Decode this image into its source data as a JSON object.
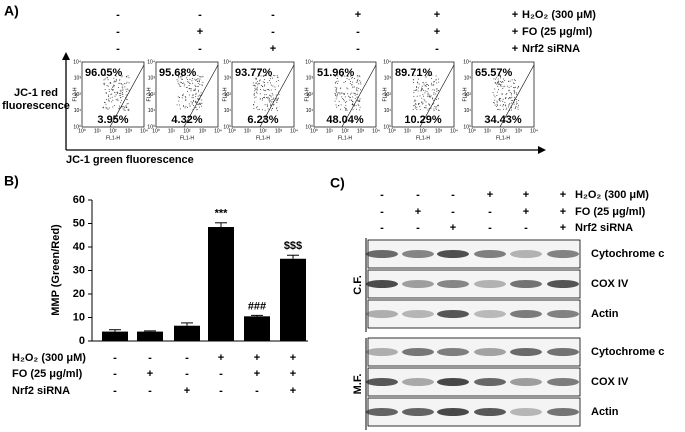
{
  "panel_a": {
    "label": "A)",
    "treatments": [
      {
        "name": "H₂O₂ (300 μM)",
        "signs": [
          "-",
          "-",
          "-",
          "+",
          "+",
          "+"
        ]
      },
      {
        "name": "FO (25 μg/ml)",
        "signs": [
          "-",
          "+",
          "-",
          "-",
          "+",
          "+"
        ]
      },
      {
        "name": "Nrf2 siRNA",
        "signs": [
          "-",
          "-",
          "+",
          "-",
          "-",
          "+"
        ]
      }
    ],
    "y_axis_label": [
      "JC-1 red",
      "fluorescence"
    ],
    "x_axis_label": "JC-1 green fluorescence",
    "plot_x_title": "FL1-H",
    "plot_y_title": "FL2-H",
    "plot_ticks": [
      "10⁰",
      "10¹",
      "10²",
      "10³",
      "10⁴"
    ],
    "plots": [
      {
        "upper": "96.05%",
        "lower": "3.95%"
      },
      {
        "upper": "95.68%",
        "lower": "4.32%"
      },
      {
        "upper": "93.77%",
        "lower": "6.23%"
      },
      {
        "upper": "51.96%",
        "lower": "48.04%"
      },
      {
        "upper": "89.71%",
        "lower": "10.29%"
      },
      {
        "upper": "65.57%",
        "lower": "34.43%"
      }
    ]
  },
  "chart_data": {
    "type": "bar",
    "panel_label": "B)",
    "ylabel": "MMP (Green/Red)",
    "treatments": [
      {
        "name": "H₂O₂ (300 μM)",
        "signs": [
          "-",
          "-",
          "-",
          "+",
          "+",
          "+"
        ]
      },
      {
        "name": "FO (25 μg/ml)",
        "signs": [
          "-",
          "+",
          "-",
          "-",
          "+",
          "+"
        ]
      },
      {
        "name": "Nrf2 siRNA",
        "signs": [
          "-",
          "-",
          "+",
          "-",
          "-",
          "+"
        ]
      }
    ],
    "values": [
      4,
      4,
      6.5,
      48.5,
      10.5,
      35
    ],
    "errors": [
      0.8,
      0.3,
      1.2,
      1.8,
      0.4,
      1.5
    ],
    "annotations": [
      null,
      null,
      null,
      "***",
      "###",
      "$$$"
    ],
    "color": "#000000",
    "ylim": [
      0,
      60
    ],
    "yticks": [
      0,
      10,
      20,
      30,
      40,
      50,
      60
    ]
  },
  "panel_c": {
    "label": "C)",
    "treatments": [
      {
        "name": "H₂O₂ (300 μM)",
        "signs": [
          "-",
          "-",
          "-",
          "+",
          "+",
          "+"
        ]
      },
      {
        "name": "FO (25 μg/ml)",
        "signs": [
          "-",
          "+",
          "-",
          "-",
          "+",
          "+"
        ]
      },
      {
        "name": "Nrf2 siRNA",
        "signs": [
          "-",
          "-",
          "+",
          "-",
          "-",
          "+"
        ]
      }
    ],
    "fractions": [
      {
        "name": "C.F.",
        "bands": [
          "Cytochrome c",
          "COX IV",
          "Actin"
        ]
      },
      {
        "name": "M.F.",
        "bands": [
          "Cytochrome c",
          "COX IV",
          "Actin"
        ]
      }
    ]
  }
}
